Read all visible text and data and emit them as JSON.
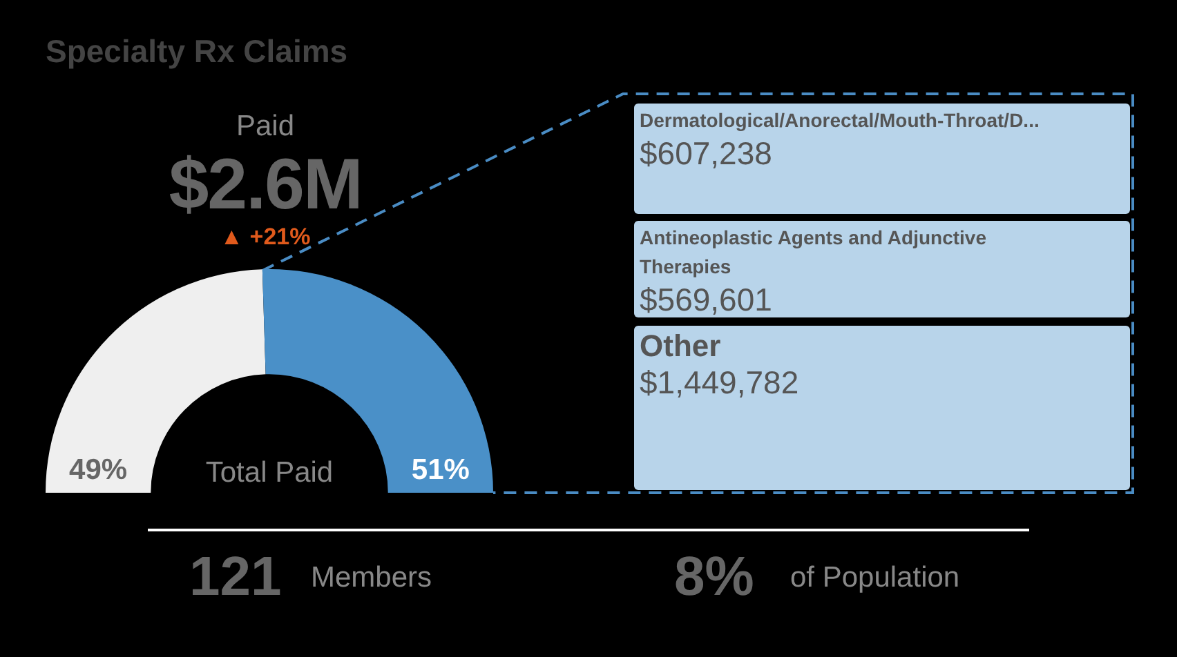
{
  "chart_data": [
    {
      "type": "donut",
      "title": "Specialty Rx Claims",
      "categories": [
        null,
        null
      ],
      "values": [
        49,
        51
      ],
      "colors": [
        "#efefef",
        "#4a90c8"
      ],
      "value_labels": [
        "49%",
        "51%"
      ],
      "annotations": [
        "Paid",
        "$2.6M",
        "▲ +21%",
        "Total Paid",
        "121",
        "Members",
        "8%",
        "of Population"
      ]
    },
    {
      "type": "other",
      "annotations": [
        "Dermatological/Anorectal/Mouth-Throat/D...",
        "$607,238",
        "Antineoplastic Agents and Adjunctive Therapies",
        "$569,601",
        "Other",
        "$1,449,782"
      ]
    }
  ]
}
